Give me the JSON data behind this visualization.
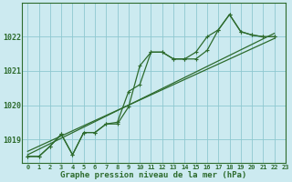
{
  "title": "Graphe pression niveau de la mer (hPa)",
  "bg_color": "#cceaf0",
  "grid_color": "#8ec8d0",
  "line_color": "#2d6b2d",
  "xlim": [
    -0.5,
    23
  ],
  "ylim": [
    1018.3,
    1023.0
  ],
  "yticks": [
    1019,
    1020,
    1021,
    1022
  ],
  "xticks": [
    0,
    1,
    2,
    3,
    4,
    5,
    6,
    7,
    8,
    9,
    10,
    11,
    12,
    13,
    14,
    15,
    16,
    17,
    18,
    19,
    20,
    21,
    22,
    23
  ],
  "wavy1": [
    1018.5,
    1018.5,
    1018.8,
    1019.15,
    1018.55,
    1019.2,
    1019.2,
    1019.45,
    1019.45,
    1019.95,
    1021.15,
    1021.55,
    1021.55,
    1021.35,
    1021.35,
    1021.35,
    1021.6,
    1022.2,
    1022.65,
    1022.15,
    1022.05,
    1022.0,
    1022.0
  ],
  "wavy2": [
    1018.5,
    1018.5,
    1018.8,
    1019.15,
    1018.55,
    1019.2,
    1019.2,
    1019.45,
    1019.5,
    1020.4,
    1020.6,
    1021.55,
    1021.55,
    1021.35,
    1021.35,
    1021.55,
    1022.0,
    1022.2,
    1022.65,
    1022.15,
    1022.05,
    1022.0,
    1022.0
  ],
  "trend1_x": [
    0,
    22
  ],
  "trend1_y": [
    1018.55,
    1022.1
  ],
  "trend2_x": [
    0,
    22
  ],
  "trend2_y": [
    1018.65,
    1021.95
  ]
}
